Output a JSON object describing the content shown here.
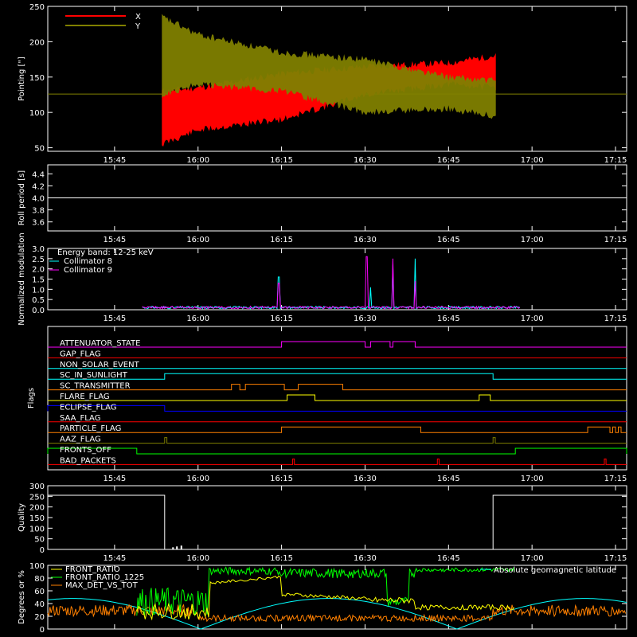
{
  "time_axis": {
    "ticks": [
      "15:45",
      "16:00",
      "16:15",
      "16:30",
      "16:45",
      "17:00",
      "17:15"
    ],
    "tick_minutes": [
      945,
      960,
      975,
      990,
      1005,
      1020,
      1035
    ],
    "range_minutes": [
      933,
      1037
    ]
  },
  "chart_data": [
    {
      "type": "line",
      "ylabel": "Pointing [\"]",
      "ylim": [
        45,
        250
      ],
      "yticks": [
        50,
        100,
        150,
        200,
        250
      ],
      "legend": [
        "X",
        "Y"
      ],
      "colors": {
        "X": "#ff0000",
        "Y": "#808000",
        "ref": "#808000"
      },
      "baseline_value": 126,
      "active_range": [
        953.5,
        1013.5
      ],
      "series": [
        {
          "name": "X",
          "envelope": [
            [
              953.5,
              55,
              130
            ],
            [
              960,
              75,
              135
            ],
            [
              975,
              90,
              155
            ],
            [
              990,
              125,
              165
            ],
            [
              1005,
              140,
              170
            ],
            [
              1013,
              135,
              180
            ]
          ]
        },
        {
          "name": "Y",
          "envelope": [
            [
              953.5,
              125,
              235
            ],
            [
              960,
              140,
              210
            ],
            [
              975,
              130,
              185
            ],
            [
              990,
              100,
              175
            ],
            [
              1005,
              105,
              150
            ],
            [
              1013,
              95,
              145
            ]
          ]
        }
      ]
    },
    {
      "type": "line",
      "ylabel": "Roll period [s]",
      "ylim": [
        3.45,
        4.55
      ],
      "yticks": [
        "3.6",
        "3.8",
        "4.0",
        "4.2",
        "4.4"
      ],
      "series": [
        {
          "name": "",
          "x": [
            933,
            1037
          ],
          "values": [
            4.0,
            4.0
          ]
        }
      ]
    },
    {
      "type": "line",
      "ylabel": "Normalized modulation",
      "ylim": [
        0,
        3.0
      ],
      "yticks": [
        "0.0",
        "0.5",
        "1.0",
        "1.5",
        "2.0",
        "2.5",
        "3.0"
      ],
      "legend_title": "Energy band: 12-25 keV",
      "series": [
        {
          "name": "Collimator 8",
          "color": "#00ffff",
          "peaks": [
            [
              974.5,
              1.6
            ],
            [
              991,
              1.1
            ],
            [
              995,
              2.2
            ],
            [
              999,
              2.5
            ]
          ]
        },
        {
          "name": "Collimator 9",
          "color": "#ff00ff",
          "peaks": [
            [
              974.5,
              1.3
            ],
            [
              990.3,
              2.6
            ],
            [
              995,
              2.5
            ],
            [
              999,
              1.4
            ]
          ]
        }
      ],
      "base_level": 0.05,
      "active_range": [
        950,
        1018
      ]
    },
    {
      "type": "line",
      "ylabel": "Flags",
      "flags": [
        {
          "name": "ATTENUATOR_STATE",
          "color": "#ff00ff",
          "on": [
            [
              975,
              990
            ],
            [
              991,
              994.5
            ],
            [
              995,
              999
            ]
          ]
        },
        {
          "name": "GAP_FLAG",
          "color": "#ff0000",
          "on": []
        },
        {
          "name": "NON_SOLAR_EVENT",
          "color": "#00ffff",
          "on": []
        },
        {
          "name": "SC_IN_SUNLIGHT",
          "color": "#00ffff",
          "on": [
            [
              954,
              1013
            ]
          ]
        },
        {
          "name": "SC_TRANSMITTER",
          "color": "#ff8000",
          "on": [
            [
              966,
              967.5
            ],
            [
              968.5,
              975.5
            ],
            [
              978,
              986
            ]
          ]
        },
        {
          "name": "FLARE_FLAG",
          "color": "#ffff00",
          "on": [
            [
              976,
              981
            ],
            [
              1010.5,
              1012.5
            ]
          ]
        },
        {
          "name": "ECLIPSE_FLAG",
          "color": "#0000ff",
          "on": [
            [
              933,
              954
            ]
          ]
        },
        {
          "name": "SAA_FLAG",
          "color": "#ff0000",
          "on": []
        },
        {
          "name": "PARTICLE_FLAG",
          "color": "#ff8000",
          "on": [
            [
              975,
              1000
            ],
            [
              1030,
              1034
            ],
            [
              1034.5,
              1035
            ],
            [
              1035.5,
              1036
            ]
          ]
        },
        {
          "name": "AAZ_FLAG",
          "color": "#808000",
          "on": [
            [
              954,
              954.4
            ],
            [
              1013,
              1013.4
            ]
          ]
        },
        {
          "name": "FRONTS_OFF",
          "color": "#00ff00",
          "on": [
            [
              933,
              949
            ],
            [
              1017,
              1037
            ]
          ]
        },
        {
          "name": "BAD_PACKETS",
          "color": "#ff0000",
          "on": [
            [
              977,
              977.3
            ],
            [
              1003,
              1003.3
            ],
            [
              1033,
              1033.3
            ]
          ]
        }
      ]
    },
    {
      "type": "line",
      "ylabel": "Quality",
      "ylim": [
        0,
        300
      ],
      "yticks": [
        "0",
        "50",
        "100",
        "150",
        "200",
        "250",
        "300"
      ],
      "series": [
        {
          "name": "",
          "x": [
            933,
            954,
            954,
            1013,
            1013,
            1037
          ],
          "values": [
            255,
            255,
            0,
            0,
            255,
            255
          ]
        }
      ]
    },
    {
      "type": "line",
      "ylabel": "Degrees or %",
      "ylim": [
        0,
        100
      ],
      "yticks": [
        "0",
        "20",
        "40",
        "60",
        "80",
        "100"
      ],
      "series": [
        {
          "name": "FRONT_RATIO",
          "color": "#ffff00"
        },
        {
          "name": "FRONT_RATIO_1225",
          "color": "#00ff00"
        },
        {
          "name": "MAX_DET_VS_TOT",
          "color": "#ff8000"
        },
        {
          "name": "Absolute geomagnetic latitude",
          "color": "#00ffff"
        }
      ]
    }
  ]
}
